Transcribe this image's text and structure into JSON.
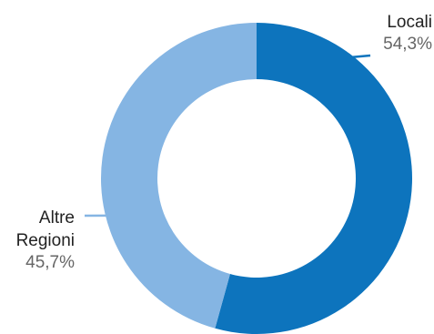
{
  "chart_data": {
    "type": "pie",
    "variant": "donut",
    "categories": [
      "Locali",
      "Altre Regioni"
    ],
    "values": [
      54.3,
      45.7
    ],
    "value_labels": [
      "54,3%",
      "45,7%"
    ],
    "label_lines": [
      [
        "Locali"
      ],
      [
        "Altre",
        "Regioni"
      ]
    ],
    "colors": [
      "#0d74bd",
      "#85b5e3"
    ],
    "legend": "none",
    "title": ""
  }
}
